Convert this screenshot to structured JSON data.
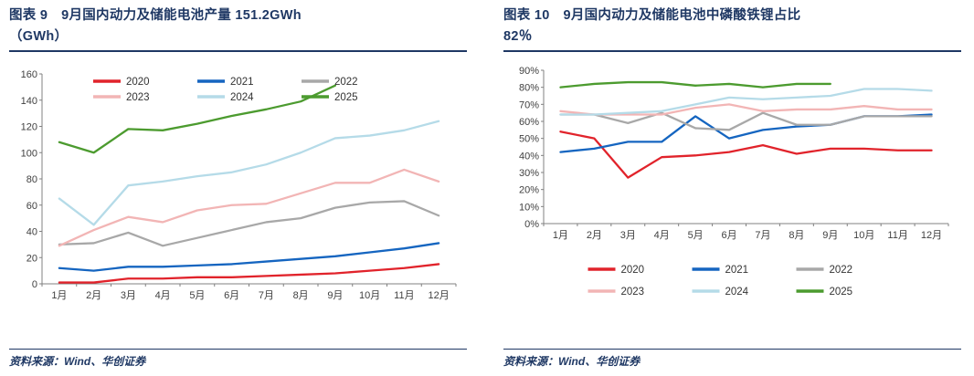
{
  "page": {
    "background": "#ffffff",
    "accent_navy": "#1f3864"
  },
  "panels": [
    {
      "title_line1": "图表 9　9月国内动力及储能电池产量 151.2GWh",
      "title_line2": "（GWh）",
      "source": "资料来源：Wind、华创证券"
    },
    {
      "title_line1": "图表 10　9月国内动力及储能电池中磷酸铁锂占比",
      "title_line2": "82％",
      "source": "资料来源：Wind、华创证券"
    }
  ],
  "chart_data": [
    {
      "type": "line",
      "title": "9月国内动力及储能电池产量 151.2GWh（GWh）",
      "x": [
        "1月",
        "2月",
        "3月",
        "4月",
        "5月",
        "6月",
        "7月",
        "8月",
        "9月",
        "10月",
        "11月",
        "12月"
      ],
      "xlabel": "",
      "ylabel": "GWh",
      "ylim": [
        0,
        160
      ],
      "ytick_step": 20,
      "yticks": [
        "0",
        "20",
        "40",
        "60",
        "80",
        "100",
        "120",
        "140",
        "160"
      ],
      "percent": false,
      "grid": false,
      "legend_position": "top-inside",
      "series": [
        {
          "name": "2020",
          "color": "#e1232b",
          "values": [
            1,
            1,
            4,
            4,
            5,
            5,
            6,
            7,
            8,
            10,
            12,
            15
          ]
        },
        {
          "name": "2021",
          "color": "#1565c0",
          "values": [
            12,
            10,
            13,
            13,
            14,
            15,
            17,
            19,
            21,
            24,
            27,
            31
          ]
        },
        {
          "name": "2022",
          "color": "#a8a8a8",
          "values": [
            30,
            31,
            39,
            29,
            35,
            41,
            47,
            50,
            58,
            62,
            63,
            52
          ]
        },
        {
          "name": "2023",
          "color": "#f2b5b5",
          "values": [
            29,
            41,
            51,
            47,
            56,
            60,
            61,
            69,
            77,
            77,
            87,
            78
          ]
        },
        {
          "name": "2024",
          "color": "#b5dbe8",
          "values": [
            65,
            45,
            75,
            78,
            82,
            85,
            91,
            100,
            111,
            113,
            117,
            124
          ]
        },
        {
          "name": "2025",
          "color": "#4c9b2f",
          "values": [
            108,
            100,
            118,
            117,
            122,
            128,
            133,
            139,
            151.2,
            null,
            null,
            null
          ]
        }
      ]
    },
    {
      "type": "line",
      "title": "9月国内动力及储能电池中磷酸铁锂占比 82%",
      "x": [
        "1月",
        "2月",
        "3月",
        "4月",
        "5月",
        "6月",
        "7月",
        "8月",
        "9月",
        "10月",
        "11月",
        "12月"
      ],
      "xlabel": "",
      "ylabel": "占比",
      "ylim": [
        0,
        90
      ],
      "ytick_step": 10,
      "yticks": [
        "0%",
        "10%",
        "20%",
        "30%",
        "40%",
        "50%",
        "60%",
        "70%",
        "80%",
        "90%"
      ],
      "percent": true,
      "grid": false,
      "legend_position": "bottom",
      "series": [
        {
          "name": "2020",
          "color": "#e1232b",
          "values": [
            54,
            50,
            27,
            39,
            40,
            42,
            46,
            41,
            44,
            44,
            43,
            43
          ]
        },
        {
          "name": "2021",
          "color": "#1565c0",
          "values": [
            42,
            44,
            48,
            48,
            63,
            50,
            55,
            57,
            58,
            63,
            63,
            64
          ]
        },
        {
          "name": "2022",
          "color": "#a8a8a8",
          "values": [
            64,
            64,
            59,
            65,
            56,
            55,
            65,
            58,
            58,
            63,
            63,
            63
          ]
        },
        {
          "name": "2023",
          "color": "#f2b5b5",
          "values": [
            66,
            64,
            64,
            64,
            68,
            70,
            66,
            67,
            67,
            69,
            67,
            67
          ]
        },
        {
          "name": "2024",
          "color": "#b5dbe8",
          "values": [
            64,
            64,
            65,
            66,
            70,
            74,
            73,
            74,
            75,
            79,
            79,
            78
          ]
        },
        {
          "name": "2025",
          "color": "#4c9b2f",
          "values": [
            80,
            82,
            83,
            83,
            81,
            82,
            80,
            82,
            82,
            null,
            null,
            null
          ]
        }
      ]
    }
  ]
}
